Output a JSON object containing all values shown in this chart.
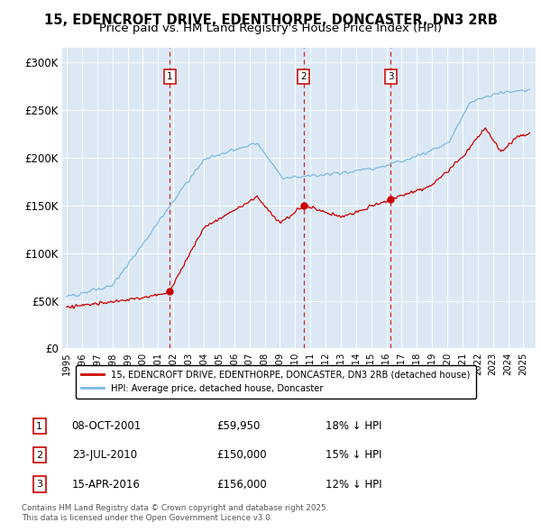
{
  "title_line1": "15, EDENCROFT DRIVE, EDENTHORPE, DONCASTER, DN3 2RB",
  "title_line2": "Price paid vs. HM Land Registry's House Price Index (HPI)",
  "title_fontsize": 10.5,
  "subtitle_fontsize": 9.5,
  "plot_bg_color": "#dce9f5",
  "fig_bg_color": "#ffffff",
  "hpi_color": "#7db9e0",
  "price_color": "#cc0000",
  "vline_color": "#cc0000",
  "ytick_labels": [
    "£0",
    "£50K",
    "£100K",
    "£150K",
    "£200K",
    "£250K",
    "£300K"
  ],
  "yticks": [
    0,
    50000,
    100000,
    150000,
    200000,
    250000,
    300000
  ],
  "ylim": [
    0,
    315000
  ],
  "xlim_left": 1994.7,
  "xlim_right": 2025.8,
  "transactions": [
    {
      "num": 1,
      "date_str": "08-OCT-2001",
      "year": 2001.77,
      "price": 59950,
      "pct": "18%",
      "dir": "↓"
    },
    {
      "num": 2,
      "date_str": "23-JUL-2010",
      "year": 2010.55,
      "price": 150000,
      "pct": "15%",
      "dir": "↓"
    },
    {
      "num": 3,
      "date_str": "15-APR-2016",
      "year": 2016.29,
      "price": 156000,
      "pct": "12%",
      "dir": "↓"
    }
  ],
  "legend_label_price": "15, EDENCROFT DRIVE, EDENTHORPE, DONCASTER, DN3 2RB (detached house)",
  "legend_label_hpi": "HPI: Average price, detached house, Doncaster",
  "footer_line1": "Contains HM Land Registry data © Crown copyright and database right 2025.",
  "footer_line2": "This data is licensed under the Open Government Licence v3.0."
}
